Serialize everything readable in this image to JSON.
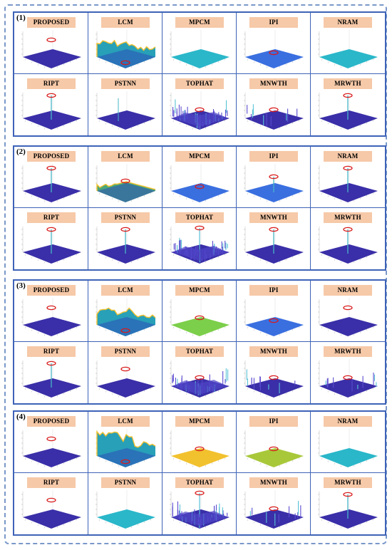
{
  "groups": [
    {
      "label": "(1)",
      "methods": [
        "PROPOSED",
        "LCM",
        "MPCM",
        "IPI",
        "NRAM",
        "RIPT",
        "PSTNN",
        "TOPHAT",
        "MNWTH",
        "MRWTH"
      ]
    },
    {
      "label": "(2)",
      "methods": [
        "PROPOSED",
        "LCM",
        "MPCM",
        "IPI",
        "NRAM",
        "RIPT",
        "PSTNN",
        "TOPHAT",
        "MNWTH",
        "MRWTH"
      ]
    },
    {
      "label": "(3)",
      "methods": [
        "PROPOSED",
        "LCM",
        "MPCM",
        "IPI",
        "NRAM",
        "RIPT",
        "PSTNN",
        "TOPHAT",
        "MNWTH",
        "MRWTH"
      ]
    },
    {
      "label": "(4)",
      "methods": [
        "PROPOSED",
        "LCM",
        "MPCM",
        "IPI",
        "NRAM",
        "RIPT",
        "PSTNN",
        "TOPHAT",
        "MNWTH",
        "MRWTH"
      ]
    }
  ],
  "plot_colors": {
    "floor": "#3a2fa8",
    "cyan": "#2ab7c9",
    "blue": "#3a6fe0",
    "green": "#7ccf4a",
    "yellow": "#f2c12e",
    "olive": "#a8c83a",
    "highlight": "#d91a1a"
  }
}
